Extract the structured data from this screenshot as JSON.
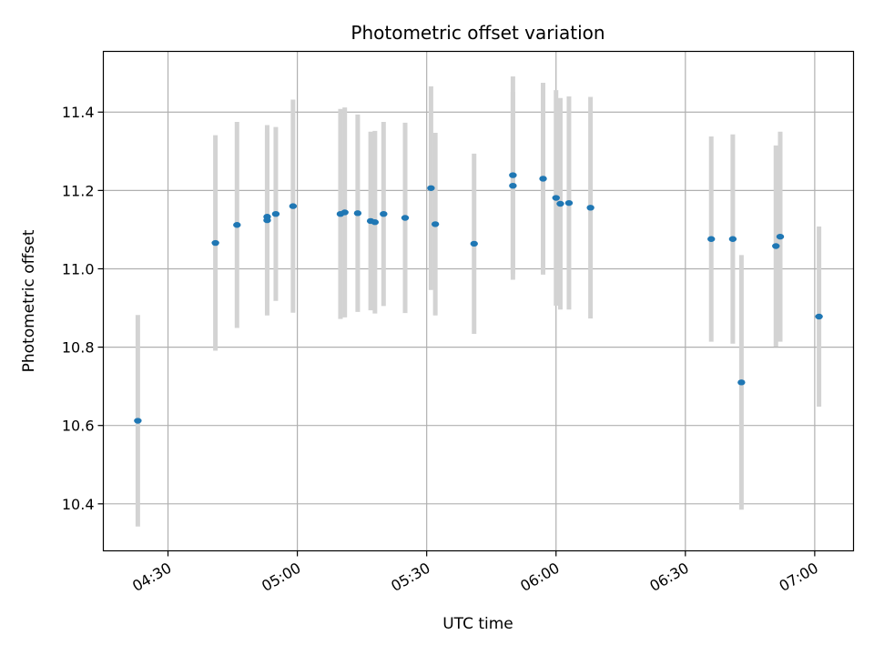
{
  "chart_data": {
    "type": "scatter",
    "title": "Photometric offset variation",
    "xlabel": "UTC time",
    "ylabel": "Photometric offset",
    "xlim": [
      "04:15",
      "07:09"
    ],
    "ylim": [
      10.28,
      11.555
    ],
    "x_ticks": [
      "04:30",
      "05:00",
      "05:30",
      "06:00",
      "06:30",
      "07:00"
    ],
    "y_ticks": [
      10.4,
      10.6,
      10.8,
      11.0,
      11.2,
      11.4
    ],
    "y_tick_labels": [
      "10.4",
      "10.6",
      "10.8",
      "11.0",
      "11.2",
      "11.4"
    ],
    "grid": true,
    "colors": {
      "point": "#1f77b4",
      "errorbar": "#d3d3d3",
      "grid": "#b0b0b0"
    },
    "series": [
      {
        "points": [
          {
            "time": "04:23",
            "y": 10.612,
            "err": 0.27
          },
          {
            "time": "04:41",
            "y": 11.066,
            "err": 0.275
          },
          {
            "time": "04:46",
            "y": 11.112,
            "err": 0.263
          },
          {
            "time": "04:53",
            "y": 11.133,
            "err": 0.215
          },
          {
            "time": "04:53",
            "y": 11.124,
            "err": 0.243
          },
          {
            "time": "04:55",
            "y": 11.14,
            "err": 0.222
          },
          {
            "time": "04:59",
            "y": 11.16,
            "err": 0.272
          },
          {
            "time": "05:10",
            "y": 11.14,
            "err": 0.268
          },
          {
            "time": "05:11",
            "y": 11.144,
            "err": 0.268
          },
          {
            "time": "05:14",
            "y": 11.142,
            "err": 0.252
          },
          {
            "time": "05:17",
            "y": 11.122,
            "err": 0.228
          },
          {
            "time": "05:18",
            "y": 11.119,
            "err": 0.233
          },
          {
            "time": "05:20",
            "y": 11.14,
            "err": 0.235
          },
          {
            "time": "05:25",
            "y": 11.13,
            "err": 0.243
          },
          {
            "time": "05:31",
            "y": 11.206,
            "err": 0.26
          },
          {
            "time": "05:32",
            "y": 11.114,
            "err": 0.233
          },
          {
            "time": "05:41",
            "y": 11.064,
            "err": 0.23
          },
          {
            "time": "05:50",
            "y": 11.212,
            "err": 0.24
          },
          {
            "time": "05:50",
            "y": 11.239,
            "err": 0.252
          },
          {
            "time": "05:57",
            "y": 11.23,
            "err": 0.245
          },
          {
            "time": "06:00",
            "y": 11.181,
            "err": 0.275
          },
          {
            "time": "06:01",
            "y": 11.166,
            "err": 0.27
          },
          {
            "time": "06:03",
            "y": 11.168,
            "err": 0.272
          },
          {
            "time": "06:08",
            "y": 11.156,
            "err": 0.283
          },
          {
            "time": "06:36",
            "y": 11.076,
            "err": 0.262
          },
          {
            "time": "06:41",
            "y": 11.076,
            "err": 0.267
          },
          {
            "time": "06:43",
            "y": 10.71,
            "err": 0.325
          },
          {
            "time": "06:51",
            "y": 11.058,
            "err": 0.257
          },
          {
            "time": "06:52",
            "y": 11.082,
            "err": 0.268
          },
          {
            "time": "07:01",
            "y": 10.878,
            "err": 0.23
          }
        ]
      }
    ]
  }
}
